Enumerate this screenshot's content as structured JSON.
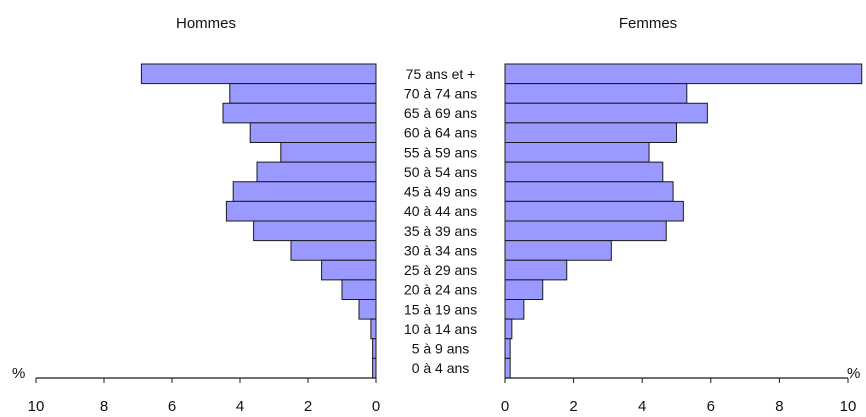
{
  "chart_data": {
    "type": "bar",
    "orientation": "horizontal",
    "variant": "population-pyramid",
    "title": "",
    "unit_label": "%",
    "categories": [
      "75 ans et +",
      "70 à 74 ans",
      "65 à 69 ans",
      "60 à 64 ans",
      "55 à 59 ans",
      "50 à 54 ans",
      "45 à 49 ans",
      "40 à 44 ans",
      "35 à 39 ans",
      "30 à 34 ans",
      "25 à 29 ans",
      "20 à 24 ans",
      "15 à 19 ans",
      "10 à 14 ans",
      "5 à 9 ans",
      "0 à 4 ans"
    ],
    "series": [
      {
        "name": "Hommes",
        "side": "left",
        "values": [
          6.9,
          4.3,
          4.5,
          3.7,
          2.8,
          3.5,
          4.2,
          4.4,
          3.6,
          2.5,
          1.6,
          1.0,
          0.5,
          0.15,
          0.1,
          0.1
        ]
      },
      {
        "name": "Femmes",
        "side": "right",
        "values": [
          10.4,
          5.3,
          5.9,
          5.0,
          4.2,
          4.6,
          4.9,
          5.2,
          4.7,
          3.1,
          1.8,
          1.1,
          0.55,
          0.2,
          0.15,
          0.15
        ]
      }
    ],
    "xlim": [
      0,
      10
    ],
    "x_ticks": [
      10,
      8,
      6,
      4,
      2,
      0
    ],
    "x_ticks_right": [
      0,
      2,
      4,
      6,
      8,
      10
    ],
    "grid": false,
    "legend": "none",
    "colors": {
      "bar_fill": "#9999ff",
      "bar_stroke": "#1a1a1a",
      "axis": "#1a1a1a"
    }
  }
}
